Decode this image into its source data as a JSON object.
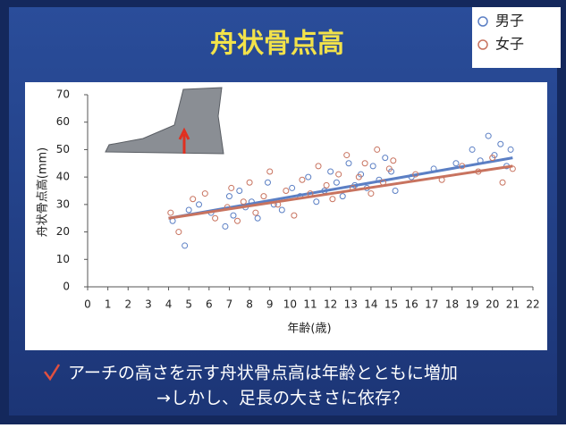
{
  "chart_data": {
    "type": "scatter",
    "title": "舟状骨点高",
    "x_label": "年齢(歳)",
    "y_label": "舟状骨点高(mm)",
    "xlim": [
      0,
      22
    ],
    "xticks": [
      0,
      1,
      2,
      3,
      4,
      5,
      6,
      7,
      8,
      9,
      10,
      11,
      12,
      13,
      14,
      15,
      16,
      17,
      18,
      19,
      20,
      21,
      22
    ],
    "ylim": [
      0,
      70
    ],
    "yticks": [
      0,
      10,
      20,
      30,
      40,
      50,
      60,
      70
    ],
    "legend": "top-right",
    "series": [
      {
        "name": "男子",
        "color": "#5b7fc4",
        "x": [
          4.2,
          4.8,
          5.0,
          5.5,
          6.1,
          6.8,
          7.0,
          7.2,
          7.5,
          7.8,
          8.1,
          8.4,
          8.9,
          9.2,
          9.6,
          10.1,
          10.5,
          10.9,
          11.3,
          11.7,
          12.0,
          12.3,
          12.6,
          12.9,
          13.2,
          13.5,
          13.8,
          14.1,
          14.4,
          14.7,
          15.0,
          15.2,
          16.0,
          17.1,
          18.2,
          19.0,
          19.4,
          19.8,
          20.1,
          20.4,
          20.7,
          20.9
        ],
        "values": [
          24,
          15,
          28,
          30,
          27,
          22,
          33,
          26,
          35,
          29,
          31,
          25,
          38,
          30,
          28,
          36,
          33,
          40,
          31,
          35,
          42,
          38,
          33,
          45,
          37,
          41,
          36,
          44,
          39,
          47,
          42,
          35,
          40,
          43,
          45,
          50,
          46,
          55,
          48,
          52,
          44,
          50
        ],
        "trend": {
          "x": [
            4,
            21
          ],
          "values": [
            25,
            47
          ]
        }
      },
      {
        "name": "女子",
        "color": "#c8735f",
        "x": [
          4.1,
          4.5,
          5.2,
          5.8,
          6.3,
          6.9,
          7.1,
          7.4,
          7.7,
          8.0,
          8.3,
          8.7,
          9.0,
          9.4,
          9.8,
          10.2,
          10.6,
          11.0,
          11.4,
          11.8,
          12.1,
          12.4,
          12.8,
          13.1,
          13.4,
          13.7,
          14.0,
          14.3,
          14.6,
          14.9,
          15.1,
          16.2,
          17.5,
          18.5,
          19.3,
          20.0,
          20.5,
          21.0
        ],
        "values": [
          27,
          20,
          32,
          34,
          25,
          29,
          36,
          24,
          31,
          38,
          27,
          33,
          42,
          30,
          35,
          26,
          39,
          34,
          44,
          37,
          32,
          41,
          48,
          36,
          40,
          45,
          34,
          50,
          38,
          43,
          46,
          41,
          39,
          44,
          42,
          47,
          38,
          43
        ],
        "trend": {
          "x": [
            4,
            21
          ],
          "values": [
            25,
            44
          ]
        }
      }
    ]
  },
  "notes": [
    "アーチの高さを示す舟状骨点高は年齢とともに増加",
    "→しかし、足長の大きさに依存？"
  ]
}
